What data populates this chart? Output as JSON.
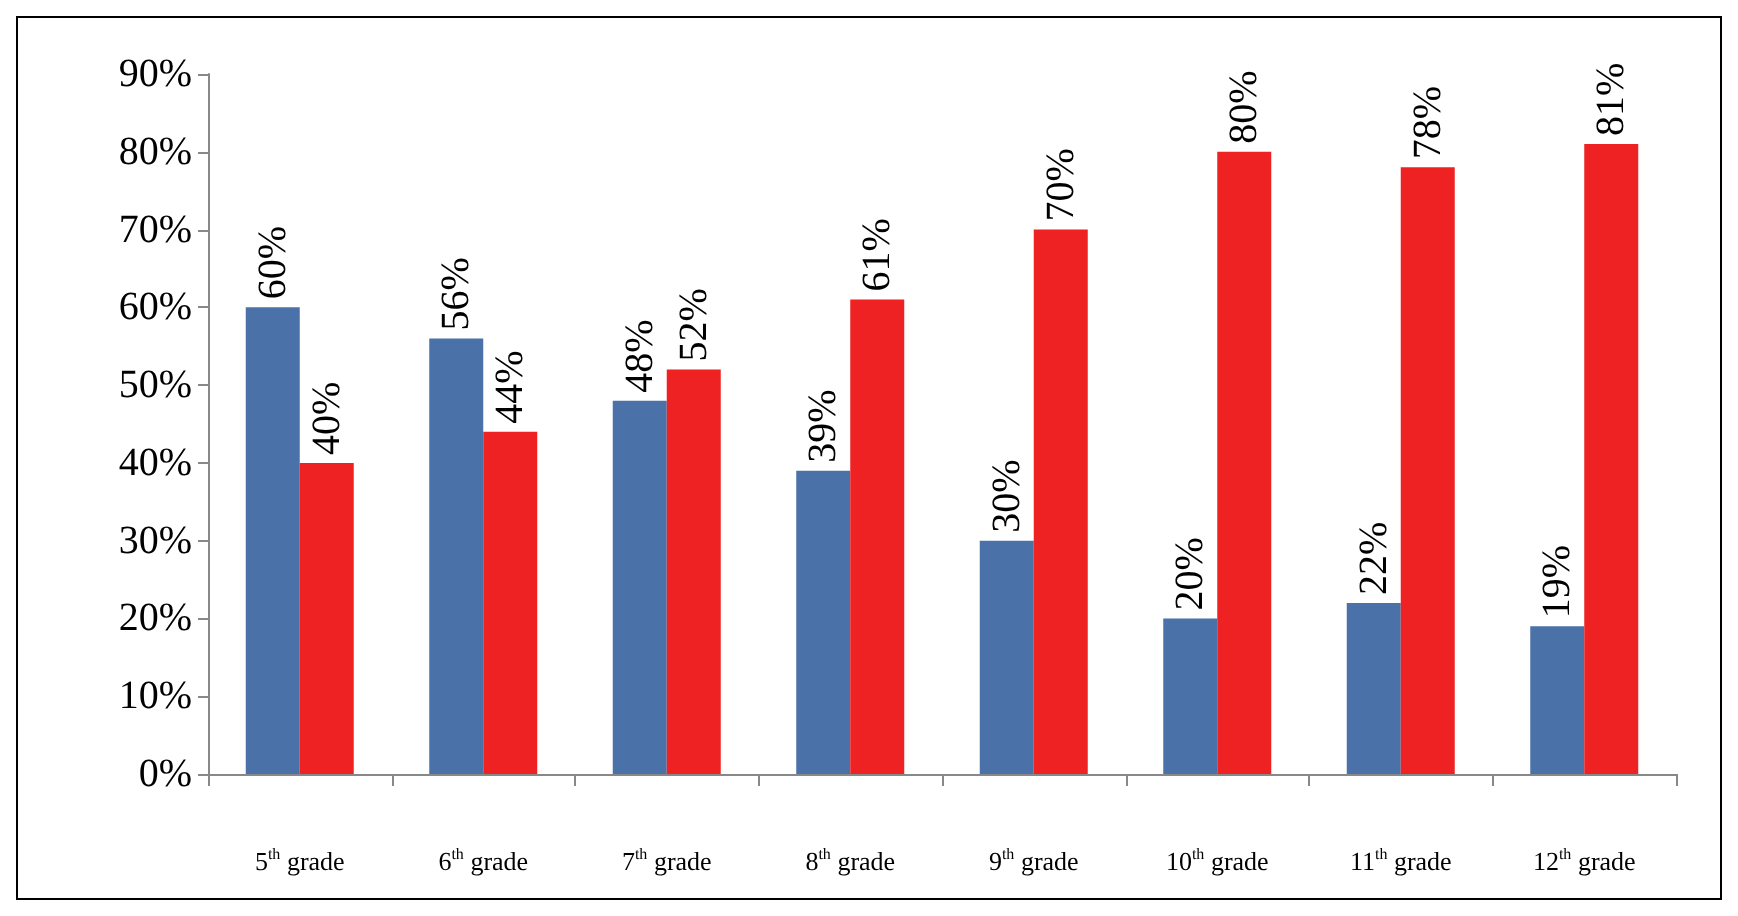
{
  "chart_data": {
    "type": "bar",
    "categories": [
      "5$^{th}$ grade",
      "6$^{th}$ grade",
      "7$^{th}$ grade",
      "8$^{th}$ grade",
      "9$^{th}$ grade",
      "10$^{th}$ grade",
      "11$^{th}$ grade",
      "12$^{th}$ grade"
    ],
    "series": [
      {
        "color": "#4a72a8",
        "values": [
          60,
          56,
          48,
          39,
          30,
          20,
          22,
          19
        ],
        "value_labels": [
          "60%",
          "56%",
          "48%",
          "39%",
          "30%",
          "20%",
          "22%",
          "19%"
        ]
      },
      {
        "color": "#ee2222",
        "values": [
          40,
          44,
          52,
          61,
          70,
          80,
          78,
          81
        ],
        "value_labels": [
          "40%",
          "44%",
          "52%",
          "61%",
          "70%",
          "80%",
          "78%",
          "81%"
        ]
      }
    ],
    "ylim": [
      0,
      90
    ],
    "yticks": [
      {
        "value": 0,
        "label": "0%"
      },
      {
        "value": 10,
        "label": "10%"
      },
      {
        "value": 20,
        "label": "20%"
      },
      {
        "value": 30,
        "label": "30%"
      },
      {
        "value": 40,
        "label": "40%"
      },
      {
        "value": 50,
        "label": "50%"
      },
      {
        "value": 60,
        "label": "60%"
      },
      {
        "value": 70,
        "label": "70%"
      },
      {
        "value": 80,
        "label": "80%"
      },
      {
        "value": 90,
        "label": "90%"
      }
    ],
    "grid": false
  }
}
